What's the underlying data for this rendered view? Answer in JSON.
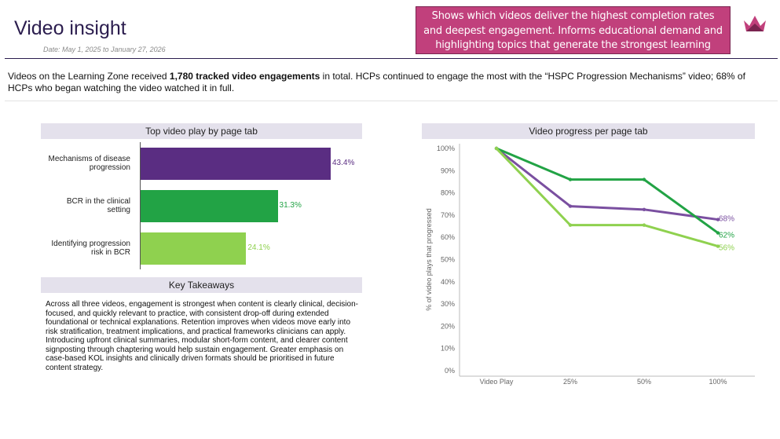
{
  "header": {
    "title": "Video insight",
    "date_range": "Date: May 1, 2025 to January 27, 2026",
    "callout": "Shows which videos deliver the highest completion rates and deepest engagement. Informs educational demand and highlighting topics that generate the strongest learning impact."
  },
  "summary": {
    "part1": "Videos on the Learning Zone received ",
    "bold": "1,780 tracked video engagements",
    "part2": " in total. HCPs continued to engage the most with the “HSPC Progression Mechanisms” video; 68% of HCPs who began watching the video watched it in full."
  },
  "takeaways": {
    "heading": "Key Takeaways",
    "text": "Across all three videos, engagement is strongest when content is clearly clinical, decision-focused, and quickly relevant to practice, with consistent drop-off during extended foundational or technical explanations. Retention improves when videos move early into risk stratification, treatment implications, and practical frameworks clinicians can apply. Introducing upfront clinical summaries, modular short-form content, and clearer content signposting through chaptering would help sustain engagement. Greater emphasis on case-based KOL insights and clinically driven formats should be prioritised in future content strategy."
  },
  "colors": {
    "purple": "#5a2d82",
    "green": "#22a345",
    "light_green": "#8fd14f",
    "callout_bg": "#c1407c"
  },
  "chart_data": [
    {
      "type": "bar",
      "title": "Top video play by page tab",
      "categories": [
        "Mechanisms of disease progression",
        "BCR in the clinical setting",
        "Identifying progression risk in BCR"
      ],
      "values": [
        43.4,
        31.3,
        24.1
      ],
      "value_labels": [
        "43.4%",
        "31.3%",
        "24.1%"
      ],
      "colors": [
        "#5a2d82",
        "#22a345",
        "#8fd14f"
      ],
      "xlim": [
        0,
        50
      ]
    },
    {
      "type": "line",
      "title": "Video progress per page tab",
      "ylabel": "% of video plays that progressed",
      "x": [
        "Video Play",
        "25%",
        "50%",
        "100%"
      ],
      "yticks": [
        "100%",
        "90%",
        "80%",
        "70%",
        "60%",
        "50%",
        "40%",
        "30%",
        "20%",
        "10%",
        "0%"
      ],
      "ylim": [
        0,
        100
      ],
      "series": [
        {
          "values": [
            100,
            74,
            72.5,
            68
          ],
          "end_label": "68%",
          "color": "#7a4fa0"
        },
        {
          "values": [
            100,
            86,
            86,
            62
          ],
          "end_label": "62%",
          "color": "#22a345"
        },
        {
          "values": [
            100,
            65.5,
            65.5,
            56
          ],
          "end_label": "56%",
          "color": "#8fd14f"
        }
      ]
    }
  ]
}
